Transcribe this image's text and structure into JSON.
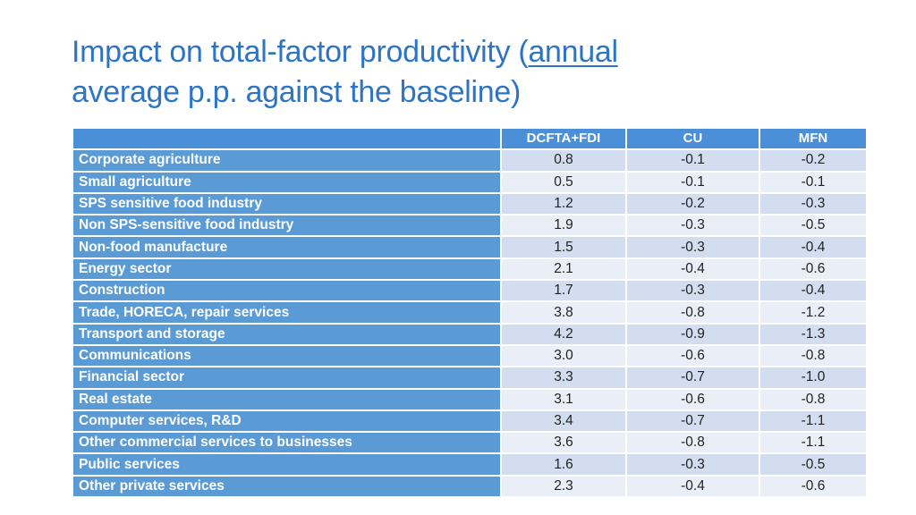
{
  "title": {
    "part1": "Impact on total-factor productivity (",
    "part2": "annual",
    "part3": "average p.p. against the baseline)"
  },
  "table": {
    "headers": [
      "",
      "DCFTA+FDI",
      "CU",
      "MFN"
    ],
    "rows": [
      {
        "label": "Corporate agriculture",
        "values": [
          "0.8",
          "-0.1",
          "-0.2"
        ]
      },
      {
        "label": "Small agriculture",
        "values": [
          "0.5",
          "-0.1",
          "-0.1"
        ]
      },
      {
        "label": "SPS sensitive food industry",
        "values": [
          "1.2",
          "-0.2",
          "-0.3"
        ]
      },
      {
        "label": "Non SPS-sensitive food industry",
        "values": [
          "1.9",
          "-0.3",
          "-0.5"
        ]
      },
      {
        "label": "Non-food manufacture",
        "values": [
          "1.5",
          "-0.3",
          "-0.4"
        ]
      },
      {
        "label": "Energy sector",
        "values": [
          "2.1",
          "-0.4",
          "-0.6"
        ]
      },
      {
        "label": "Construction",
        "values": [
          "1.7",
          "-0.3",
          "-0.4"
        ]
      },
      {
        "label": "Trade, HORECA, repair services",
        "values": [
          "3.8",
          "-0.8",
          "-1.2"
        ]
      },
      {
        "label": "Transport and storage",
        "values": [
          "4.2",
          "-0.9",
          "-1.3"
        ]
      },
      {
        "label": "Communications",
        "values": [
          "3.0",
          "-0.6",
          "-0.8"
        ]
      },
      {
        "label": "Financial sector",
        "values": [
          "3.3",
          "-0.7",
          "-1.0"
        ]
      },
      {
        "label": "Real estate",
        "values": [
          "3.1",
          "-0.6",
          "-0.8"
        ]
      },
      {
        "label": "Computer services, R&D",
        "values": [
          "3.4",
          "-0.7",
          "-1.1"
        ]
      },
      {
        "label": "Other commercial services to businesses",
        "values": [
          "3.6",
          "-0.8",
          "-1.1"
        ]
      },
      {
        "label": "Public services",
        "values": [
          "1.6",
          "-0.3",
          "-0.5"
        ]
      },
      {
        "label": "Other private services",
        "values": [
          "2.3",
          "-0.4",
          "-0.6"
        ]
      }
    ]
  },
  "colors": {
    "title": "#2e74c4",
    "header_fill": "#4a8fd8",
    "label_fill": "#5b9bd5",
    "row_odd_fill": "#d2deef",
    "row_even_fill": "#eaeff7"
  }
}
